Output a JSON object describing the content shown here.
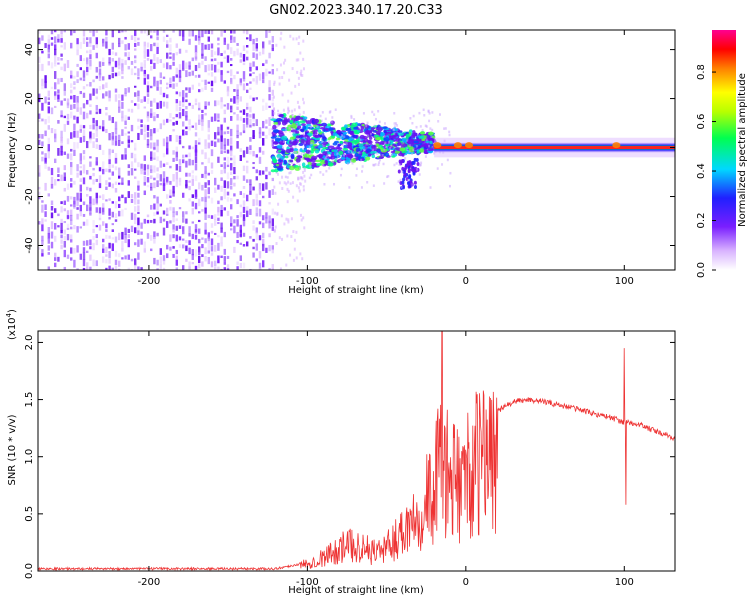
{
  "figure": {
    "title": "GN02.2023.340.17.20.C33"
  },
  "chart_data": [
    {
      "type": "heatmap",
      "xlabel": "Height of straight line (km)",
      "ylabel": "Frequency (Hz)",
      "xlim": [
        -270,
        132
      ],
      "ylim": [
        -50,
        48
      ],
      "xticks": [
        -200,
        -100,
        0,
        100
      ],
      "xticklabels": [
        "-200",
        "-100",
        "0",
        "100"
      ],
      "yticks": [
        -40,
        -20,
        0,
        20,
        40
      ],
      "yticklabels": [
        "-40",
        "-20",
        "0",
        "20",
        "40"
      ],
      "colorbar": {
        "label": "Normalized spectral amplitude",
        "range": [
          0,
          0.97
        ],
        "ticks": [
          0.0,
          0.2,
          0.4,
          0.6,
          0.8
        ],
        "ticklabels": [
          "0.0",
          "0.2",
          "0.4",
          "0.6",
          "0.8"
        ],
        "colormap": "rainbow (white-purple-blue-cyan-green-yellow-red-magenta)"
      },
      "regions": [
        {
          "x": [
            -270,
            -122
          ],
          "freq": [
            -50,
            48
          ],
          "amplitude": [
            0.05,
            0.2
          ]
        },
        {
          "x": [
            -122,
            -20
          ],
          "freq": [
            -18,
            12
          ],
          "amplitude": [
            0.15,
            0.45
          ]
        },
        {
          "x": [
            -20,
            132
          ],
          "freq": [
            -1,
            1
          ],
          "amplitude": [
            0.8,
            0.9
          ]
        }
      ]
    },
    {
      "type": "line",
      "xlabel": "Height of straight line (km)",
      "ylabel": "SNR (10 * v/v)",
      "yscale_label": "(x10",
      "yscale_exp": "4",
      "yscale_close": ")",
      "xlim": [
        -270,
        132
      ],
      "ylim": [
        0,
        2.1
      ],
      "xticks": [
        -200,
        -100,
        0,
        100
      ],
      "xticklabels": [
        "-200",
        "-100",
        "0",
        "100"
      ],
      "yticks": [
        0.0,
        0.5,
        1.0,
        1.5,
        2.0
      ],
      "yticklabels": [
        "0.0",
        "0.5",
        "1.0",
        "1.5",
        "2.0"
      ],
      "color": "#ee3333",
      "series_envelope": {
        "x": [
          -270,
          -200,
          -120,
          -105,
          -90,
          -80,
          -70,
          -60,
          -50,
          -40,
          -30,
          -20,
          -15,
          -10,
          -5,
          0,
          10,
          20,
          30,
          40,
          50,
          60,
          70,
          80,
          90,
          100,
          110,
          120,
          132
        ],
        "y": [
          0.02,
          0.02,
          0.02,
          0.06,
          0.15,
          0.25,
          0.3,
          0.22,
          0.25,
          0.45,
          0.7,
          0.9,
          1.3,
          0.95,
          1.0,
          1.05,
          1.25,
          1.4,
          1.48,
          1.5,
          1.48,
          1.45,
          1.42,
          1.38,
          1.35,
          1.3,
          1.28,
          1.22,
          1.16
        ]
      },
      "peaks": [
        {
          "x": -15,
          "y": 2.1
        },
        {
          "x": 100,
          "y": 1.95
        },
        {
          "x": 101,
          "y": 0.58
        },
        {
          "x": 16,
          "y": 0.65
        }
      ]
    }
  ]
}
